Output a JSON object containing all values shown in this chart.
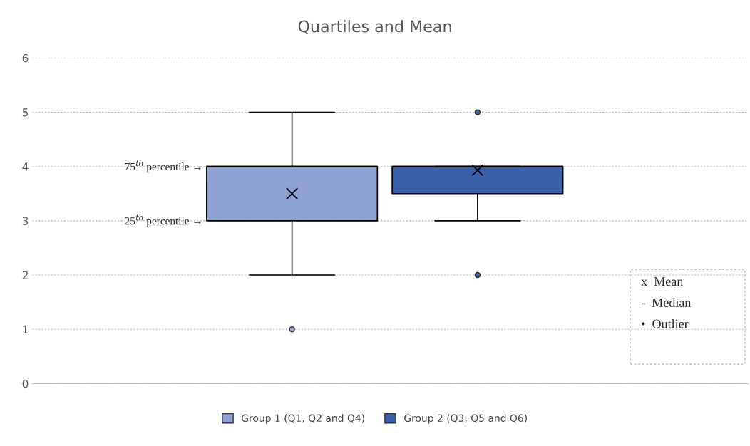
{
  "chart_data": {
    "type": "box",
    "title": "Quartiles and Mean",
    "categories": [
      null
    ],
    "series": [
      {
        "name": "Group 1 (Q1, Q2 and Q4)",
        "color": "#8fa2d4",
        "boxes": [
          {
            "low": 2,
            "q1": 3,
            "median": 4,
            "q3": 4,
            "high": 5,
            "mean": 3.5,
            "outliers": [
              1
            ]
          }
        ]
      },
      {
        "name": "Group 2 (Q3, Q5 and Q6)",
        "color": "#3a60aa",
        "boxes": [
          {
            "low": 3,
            "q1": 3.5,
            "median": 4,
            "q3": 4,
            "high": 4,
            "mean": 3.93,
            "outliers": [
              2,
              5
            ]
          }
        ]
      }
    ],
    "ylim": [
      0,
      6
    ],
    "yticks": [
      0,
      1,
      2,
      3,
      4,
      5,
      6
    ],
    "grid": "y",
    "legend": "bottom",
    "annotations": [
      "75$^{th}$ percentile →",
      "25$^{th}$ percentile →",
      "x  Mean",
      "-  Median",
      "•  Outlier"
    ]
  }
}
